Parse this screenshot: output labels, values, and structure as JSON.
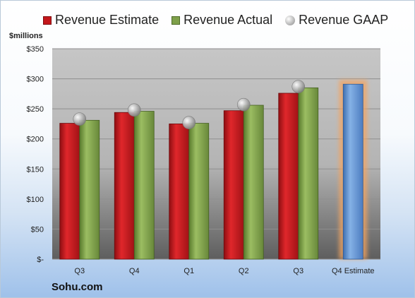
{
  "chart_data": {
    "type": "bar",
    "categories": [
      "Q3",
      "Q4",
      "Q1",
      "Q2",
      "Q3",
      "Q4 Estimate"
    ],
    "series": [
      {
        "name": "Revenue Estimate",
        "color": "#c4171b",
        "values": [
          226,
          244,
          225,
          247,
          276,
          null
        ]
      },
      {
        "name": "Revenue Actual",
        "color": "#7ea04a",
        "values": [
          231,
          246,
          226,
          256,
          285,
          null
        ]
      },
      {
        "name": "Revenue GAAP",
        "color": "#a8a8a8",
        "marker": "sphere",
        "values": [
          233,
          248,
          227,
          257,
          287,
          null
        ]
      },
      {
        "name": "",
        "color": "#6f9fd8",
        "highlight": "#f4a460",
        "values": [
          null,
          null,
          null,
          null,
          null,
          291
        ]
      }
    ],
    "ylim": [
      0,
      350
    ],
    "yticks": [
      0,
      50,
      100,
      150,
      200,
      250,
      300,
      350
    ],
    "ytick_labels": [
      "$-",
      "$50",
      "$100",
      "$150",
      "$200",
      "$250",
      "$300",
      "$350"
    ],
    "ylabel": "$millions",
    "grid": true,
    "legend": "top"
  },
  "legend": {
    "estimate": "Revenue Estimate",
    "actual": "Revenue Actual",
    "gaap": "Revenue GAAP"
  },
  "units_label": "$millions",
  "company": "Sohu.com"
}
